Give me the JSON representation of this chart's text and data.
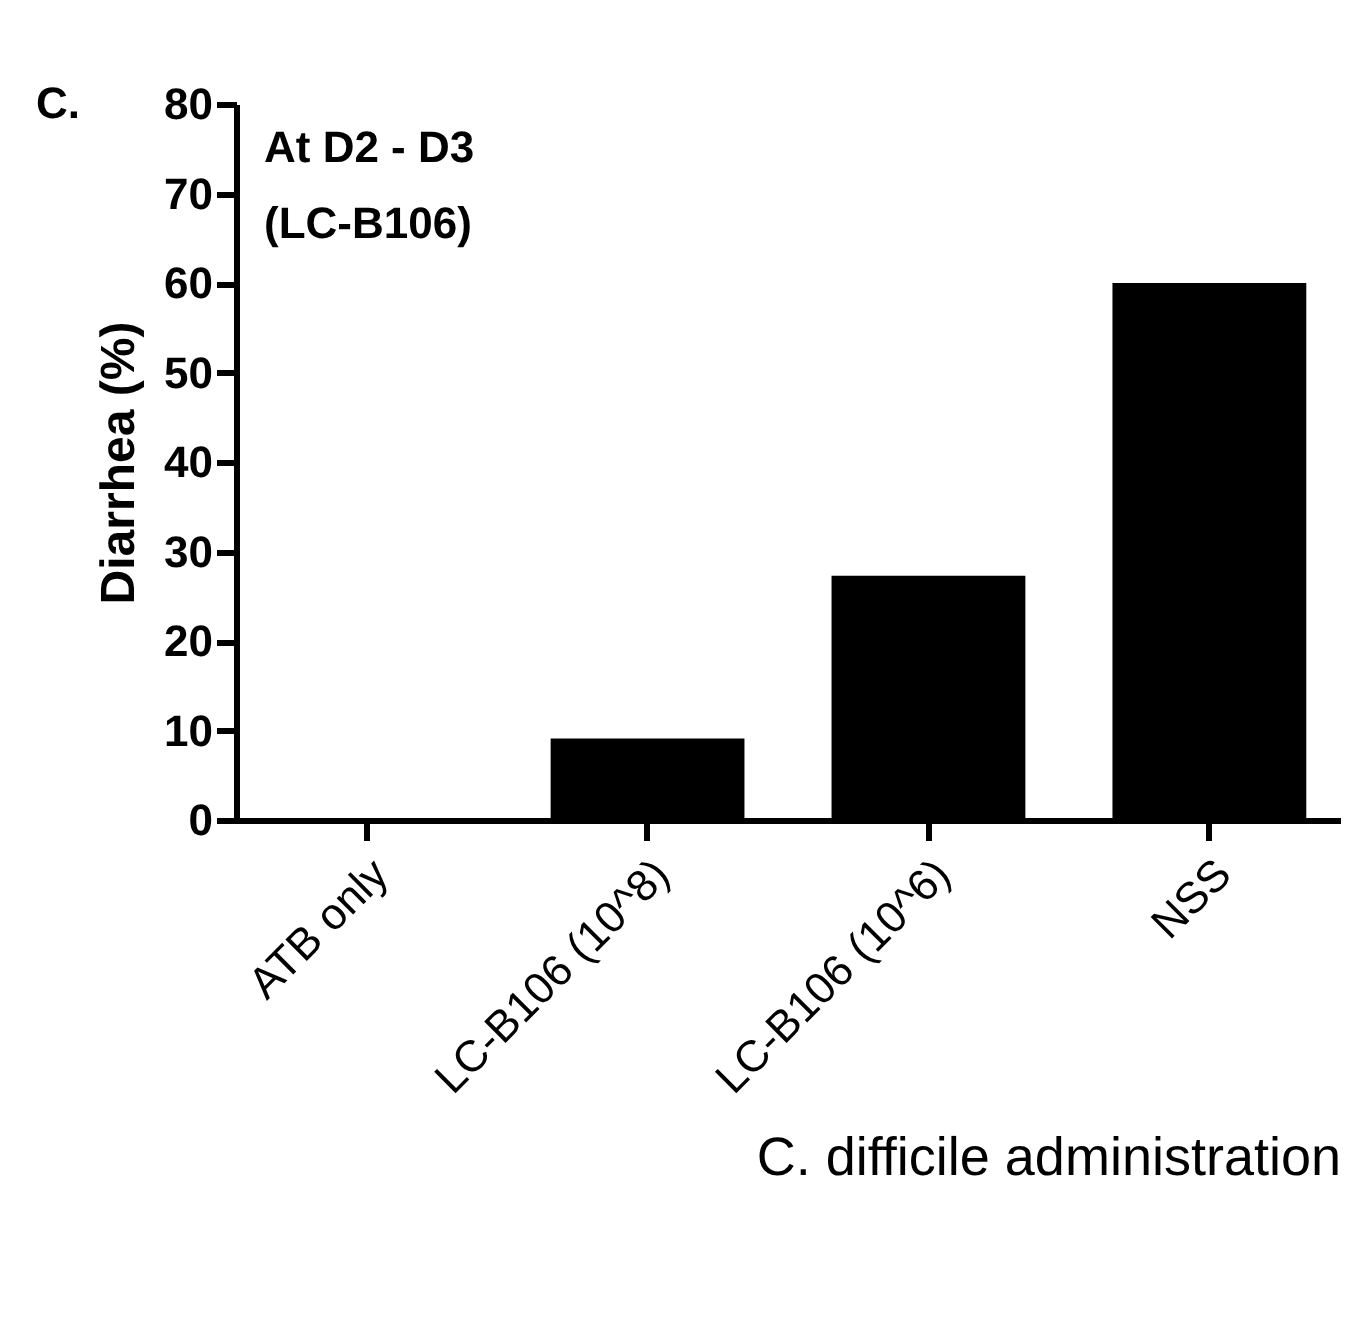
{
  "chart_data": {
    "type": "bar",
    "categories": [
      "ATB only",
      "LC-B106 (10^8)",
      "LC-B106 (10^6)",
      "NSS"
    ],
    "values": [
      0,
      9.1,
      27.3,
      60
    ],
    "color": "#000000",
    "ylim": [
      0,
      80
    ],
    "yticks": [
      0,
      10,
      20,
      30,
      40,
      50,
      60,
      70,
      80
    ],
    "xlabel": "C. difficile administration",
    "ylabel": "Diarrhea (%)",
    "annotations": [
      "C.",
      "At D2 - D3",
      "(LC-B106)"
    ]
  }
}
